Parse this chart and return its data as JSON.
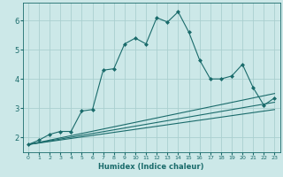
{
  "title": "",
  "xlabel": "Humidex (Indice chaleur)",
  "ylabel": "",
  "background_color": "#cce8e8",
  "grid_color": "#aacfcf",
  "line_color": "#1a6b6b",
  "xlim": [
    -0.5,
    23.5
  ],
  "ylim": [
    1.5,
    6.6
  ],
  "xticks": [
    0,
    1,
    2,
    3,
    4,
    5,
    6,
    7,
    8,
    9,
    10,
    11,
    12,
    13,
    14,
    15,
    16,
    17,
    18,
    19,
    20,
    21,
    22,
    23
  ],
  "yticks": [
    2,
    3,
    4,
    5,
    6
  ],
  "series": [
    {
      "x": [
        0,
        1,
        2,
        3,
        4,
        5,
        6,
        7,
        8,
        9,
        10,
        11,
        12,
        13,
        14,
        15,
        16,
        17,
        18,
        19,
        20,
        21,
        22,
        23
      ],
      "y": [
        1.75,
        1.9,
        2.1,
        2.2,
        2.2,
        2.9,
        2.95,
        4.3,
        4.35,
        5.2,
        5.4,
        5.2,
        6.1,
        5.95,
        6.3,
        5.6,
        4.65,
        4.0,
        4.0,
        4.1,
        4.5,
        3.7,
        3.1,
        3.35
      ],
      "marker": "D",
      "markersize": 2.0,
      "linewidth": 0.8
    },
    {
      "x": [
        0,
        23
      ],
      "y": [
        1.75,
        3.5
      ],
      "marker": null,
      "linewidth": 0.8
    },
    {
      "x": [
        0,
        23
      ],
      "y": [
        1.75,
        3.2
      ],
      "marker": null,
      "linewidth": 0.8
    },
    {
      "x": [
        0,
        23
      ],
      "y": [
        1.75,
        2.95
      ],
      "marker": null,
      "linewidth": 0.8
    }
  ]
}
